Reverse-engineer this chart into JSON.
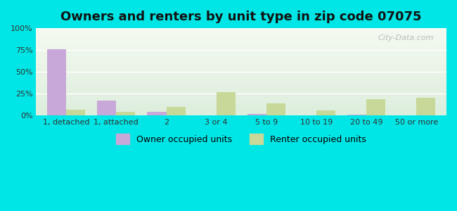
{
  "title": "Owners and renters by unit type in zip code 07075",
  "categories": [
    "1, detached",
    "1, attached",
    "2",
    "3 or 4",
    "5 to 9",
    "10 to 19",
    "20 to 49",
    "50 or more"
  ],
  "owner_values": [
    76,
    17,
    4,
    0,
    2,
    0,
    1,
    0
  ],
  "renter_values": [
    7,
    4,
    10,
    27,
    14,
    6,
    19,
    20
  ],
  "owner_color": "#c8a8d8",
  "renter_color": "#c8d898",
  "background_color": "#00e5e5",
  "title_fontsize": 13,
  "tick_fontsize": 8,
  "legend_fontsize": 9,
  "ylim": [
    0,
    100
  ],
  "yticks": [
    0,
    25,
    50,
    75,
    100
  ],
  "ytick_labels": [
    "0%",
    "25%",
    "50%",
    "75%",
    "100%"
  ],
  "bar_width": 0.38,
  "watermark": "City-Data.com"
}
